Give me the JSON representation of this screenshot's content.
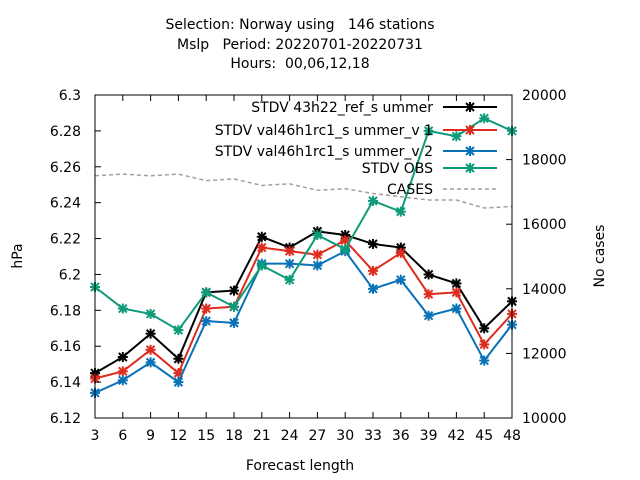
{
  "chart_data": {
    "type": "line",
    "title_lines": [
      "Selection: Norway using   146 stations",
      "Mslp   Period: 20220701-20220731",
      "Hours:  00,06,12,18"
    ],
    "xlabel": "Forecast length",
    "ylabel": "hPa",
    "y2label": "No cases",
    "x": [
      3,
      6,
      9,
      12,
      15,
      18,
      21,
      24,
      27,
      30,
      33,
      36,
      39,
      42,
      45,
      48
    ],
    "xlim": [
      3,
      48
    ],
    "ylim": [
      6.12,
      6.3
    ],
    "y2lim": [
      10000,
      20000
    ],
    "yticks": [
      "6.12",
      "6.14",
      "6.16",
      "6.18",
      "6.2",
      "6.22",
      "6.24",
      "6.26",
      "6.28",
      "6.3"
    ],
    "y2ticks": [
      "10000",
      "12000",
      "14000",
      "16000",
      "18000",
      "20000"
    ],
    "xticks": [
      "3",
      "6",
      "9",
      "12",
      "15",
      "18",
      "21",
      "24",
      "27",
      "30",
      "33",
      "36",
      "39",
      "42",
      "45",
      "48"
    ],
    "legend_position": "top-right",
    "series": [
      {
        "name": "STDV 43h22",
        "name_sub1": "ref",
        "name_mid": "s",
        "name_sub2": "ummer",
        "legend_text": "STDV 43h22_ref_s ummer",
        "color": "#000000",
        "axis": "y",
        "values": [
          6.145,
          6.154,
          6.167,
          6.153,
          6.19,
          6.191,
          6.221,
          6.215,
          6.224,
          6.222,
          6.217,
          6.215,
          6.2,
          6.195,
          6.17,
          6.185
        ]
      },
      {
        "name": "STDV val46h1rc1",
        "legend_text": "STDV val46h1rc1_s ummer_v 1",
        "color": "#dd2c1e",
        "axis": "y",
        "values": [
          6.142,
          6.146,
          6.158,
          6.145,
          6.181,
          6.182,
          6.215,
          6.213,
          6.211,
          6.219,
          6.202,
          6.212,
          6.189,
          6.19,
          6.161,
          6.178
        ]
      },
      {
        "name": "STDV val46h1rc1",
        "legend_text": "STDV val46h1rc1_s ummer_v 2",
        "color": "#0a72b7",
        "axis": "y",
        "values": [
          6.134,
          6.141,
          6.151,
          6.14,
          6.174,
          6.173,
          6.206,
          6.206,
          6.205,
          6.213,
          6.192,
          6.197,
          6.177,
          6.181,
          6.152,
          6.172
        ]
      },
      {
        "name": "STDV OBS",
        "legend_text": "STDV OBS",
        "color": "#0d9b7a",
        "axis": "y",
        "values": [
          6.193,
          6.181,
          6.178,
          6.169,
          6.19,
          6.182,
          6.205,
          6.197,
          6.222,
          6.214,
          6.241,
          6.235,
          6.28,
          6.277,
          6.287,
          6.28
        ]
      },
      {
        "name": "CASES",
        "legend_text": "CASES",
        "color": "#a0a0a0",
        "axis": "y2",
        "dashed": true,
        "values": [
          17500,
          17550,
          17500,
          17550,
          17350,
          17400,
          17200,
          17250,
          17050,
          17100,
          16950,
          16850,
          16750,
          16750,
          16500,
          16550
        ]
      }
    ]
  }
}
